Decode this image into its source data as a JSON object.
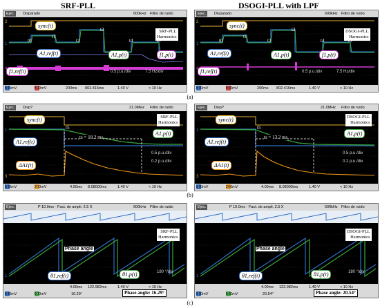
{
  "titles": {
    "left": "SRF-PLL",
    "right": "DSOGI-PLL with LPF"
  },
  "captions": {
    "a": "(a)",
    "b": "(b)",
    "c": "(c)"
  },
  "panel_a": {
    "left": {
      "topbar": {
        "mode": "Ejec.",
        "trigger": "Disparado",
        "rate": "600kHz",
        "filter": "Filtro de ruido"
      },
      "info": "SRF-PLL\nHarmonics",
      "labels": {
        "sync": "sync(t)",
        "a1": "A1,ref(t)",
        "a1b": "A1,p(t)",
        "f": "f1,p(t)",
        "fref": "f1,ref(t)"
      },
      "t_labels": [
        "t0",
        "t1",
        "t2",
        "t3",
        "t4",
        "t5"
      ],
      "scales": [
        "0.5 p.u./div",
        "7.5 Hz/div"
      ],
      "bottom": {
        "ch1": "500mV",
        "ch2": "500mV",
        "ch3": "500mV",
        "ch4": "500mV",
        "time": "200ms",
        "delay": "802.416ms",
        "trig": "1.40 V",
        "bw": "< 10 Hz"
      }
    },
    "right": {
      "topbar": {
        "mode": "Ejec.",
        "trigger": "Disparado",
        "rate": "600kHz",
        "filter": "Filtro de ruido"
      },
      "info": "DSOGI-PLL\nHarmonics",
      "labels": {
        "sync": "sync(t)",
        "a1": "A1,ref(t)",
        "a1b": "A1,p(t)",
        "f": "f1,p(t)",
        "fref": "f1,ref(t)"
      },
      "t_labels": [
        "t0",
        "t1",
        "t2",
        "t3",
        "t4",
        "t5"
      ],
      "scales": [
        "0.5 p.u./div",
        "7.5 Hz/div"
      ],
      "bottom": {
        "ch1": "500mV",
        "ch2": "500mV",
        "ch3": "500mV",
        "ch4": "500mV",
        "time": "200ms",
        "delay": "802.416ms",
        "trig": "1.40 V",
        "bw": "< 10 Hz"
      }
    }
  },
  "panel_b": {
    "left": {
      "topbar": {
        "mode": "Ejec.",
        "trigger": "Disp?",
        "rate": "21.0MHz",
        "filter": "Filtro de ruido"
      },
      "info": "SRF-PLL\nHarmonics",
      "labels": {
        "sync": "sync(t)",
        "t5": "t5",
        "a1ref": "A1,ref(t)",
        "a1p": "A1,p(t)",
        "da": "ΔA1(t)"
      },
      "duration": "ts = 18.2  ms",
      "scales": [
        "0.5 p.u./div",
        "0.2 p.u./div"
      ],
      "bottom": {
        "ch1": "500mV",
        "ch2": "200mV",
        "ch3": "500mV",
        "ch4": "400mV",
        "time": "4.00ms",
        "delay": "8.08000ms",
        "trig": "1.40 V",
        "bw": "< 10 Hz"
      }
    },
    "right": {
      "topbar": {
        "mode": "Ejec.",
        "trigger": "Disp?",
        "rate": "21.0MHz",
        "filter": "Filtro de ruido"
      },
      "info": "DSOGI-PLL\nHarmonics",
      "labels": {
        "sync": "sync(t)",
        "t5": "t5",
        "a1ref": "A1,ref(t)",
        "a1p": "A1,p(t)",
        "da": "ΔA1(t)"
      },
      "duration": "ts = 13.2  ms",
      "scales": [
        "0.5 p.u./div",
        "0.2 p.u./div"
      ],
      "bottom": {
        "ch1": "500mV",
        "ch2": "200mV",
        "ch3": "500mV",
        "ch4": "400mV",
        "time": "4.00ms",
        "delay": "8.08000ms",
        "trig": "1.40 V",
        "bw": "< 10 Hz"
      }
    }
  },
  "panel_c": {
    "left": {
      "topbar": {
        "mode": "Ejec.",
        "zoom": "P 10.0ms · Fact. de ampli. 2.5 X",
        "rate": "600kHz",
        "filter": "Filtro de ruido"
      },
      "info": "SRF-PLL\nHarmonics",
      "labels": {
        "phase": "Phase angle",
        "th_ref": "θ1,ref(t)",
        "th_p": "θ1,p(t)"
      },
      "scale": "180 °/div",
      "phase_box": "Phase angle: 16.29°",
      "bottom": {
        "ch1": "500mV",
        "ch3": "500mV",
        "time": "4.00ms",
        "delay": "122.982ms",
        "trig": "1.40 V",
        "bw": "< 10 Hz",
        "val": "16.29°"
      }
    },
    "right": {
      "topbar": {
        "mode": "Ejec.",
        "zoom": "P 10.0ms · Fact. de ampli. 2.5 X",
        "rate": "600kHz",
        "filter": "Filtro de ruido"
      },
      "info": "DSOGI-PLL\nHarmonics",
      "labels": {
        "phase": "Phase angle",
        "th_ref": "θ1,ref(t)",
        "th_p": "θ1,p(t)"
      },
      "scale": "180 °/div",
      "phase_box": "Phase angle: 20.54°",
      "bottom": {
        "ch1": "500mV",
        "ch3": "500mV",
        "time": "4.00ms",
        "delay": "122.982ms",
        "trig": "1.40 V",
        "bw": "< 10 Hz",
        "val": "20.54°"
      }
    }
  }
}
